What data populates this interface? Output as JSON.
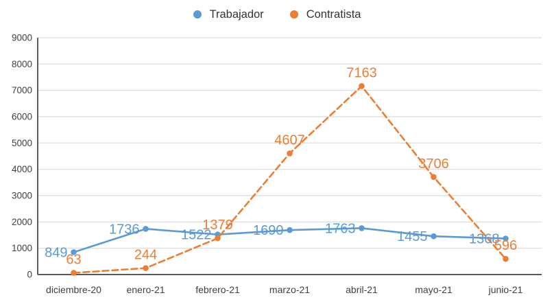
{
  "legend": {
    "items": [
      {
        "label": "Trabajador",
        "color": "#5B9BD5"
      },
      {
        "label": "Contratista",
        "color": "#ED7D31"
      }
    ]
  },
  "chart_data": {
    "type": "line",
    "categories": [
      "diciembre-20",
      "enero-21",
      "febrero-21",
      "marzo-21",
      "abril-21",
      "mayo-21",
      "junio-21"
    ],
    "series": [
      {
        "name": "Trabajador",
        "values": [
          849,
          1736,
          1522,
          1690,
          1763,
          1455,
          1368
        ],
        "color": "#5B9BD5",
        "line_style": "solid",
        "label_placement": "left"
      },
      {
        "name": "Contratista",
        "values": [
          63,
          244,
          1379,
          4607,
          7163,
          3706,
          596
        ],
        "color": "#ED7D31",
        "line_style": "dashed",
        "label_placement": "above"
      }
    ],
    "title": "",
    "xlabel": "",
    "ylabel": "",
    "ylim": [
      0,
      9000
    ],
    "ytick_step": 1000,
    "grid": true,
    "legend_position": "top",
    "data_labels": true,
    "colors": {
      "gridline": "#D9D9D9",
      "axis_line": "#404040",
      "tick_text": "#404040"
    }
  }
}
